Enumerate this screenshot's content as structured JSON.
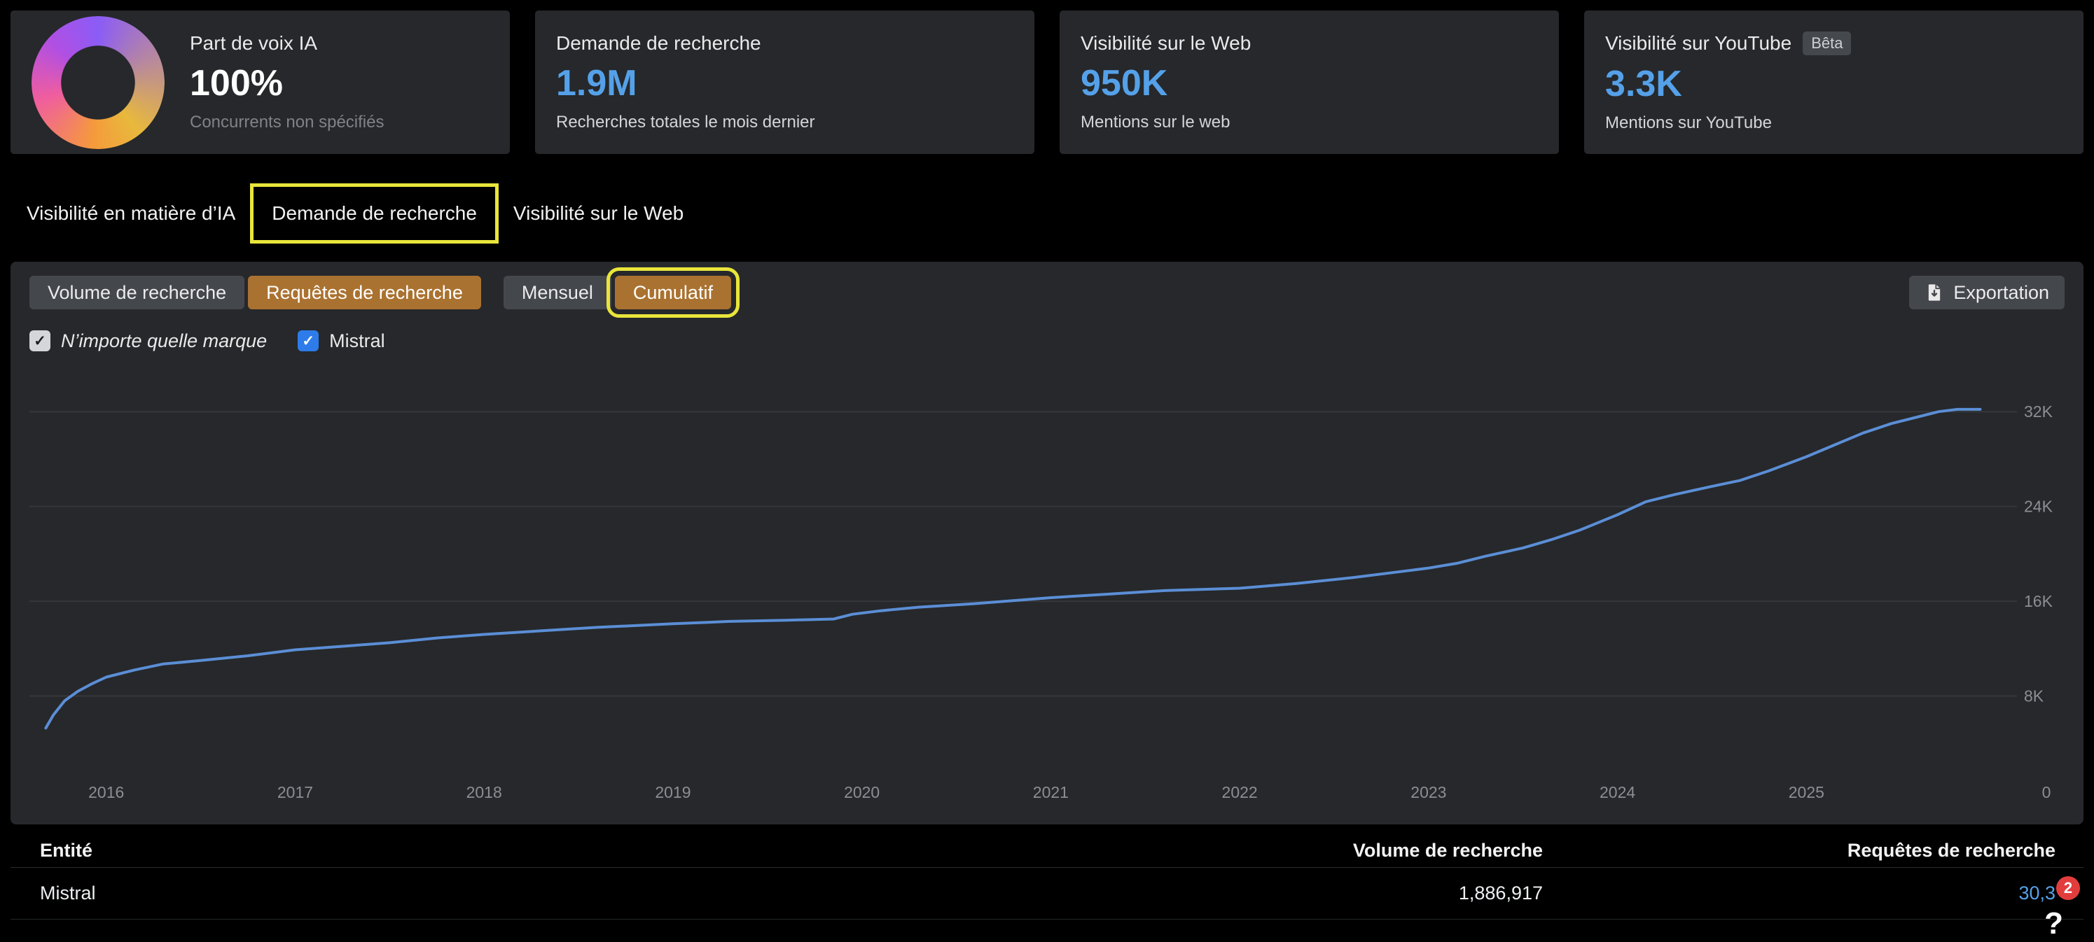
{
  "cards": [
    {
      "title": "Part de voix IA",
      "value": "100%",
      "subtitle": "Concurrents non spécifiés"
    },
    {
      "title": "Demande de recherche",
      "value": "1.9M",
      "subtitle": "Recherches totales le mois dernier"
    },
    {
      "title": "Visibilité sur le Web",
      "value": "950K",
      "subtitle": "Mentions sur le web"
    },
    {
      "title": "Visibilité sur YouTube",
      "badge": "Bêta",
      "value": "3.3K",
      "subtitle": "Mentions sur YouTube"
    }
  ],
  "tabs": [
    {
      "label": "Visibilité en matière d’IA",
      "active": false
    },
    {
      "label": "Demande de recherche",
      "active": true
    },
    {
      "label": "Visibilité sur le Web",
      "active": false
    }
  ],
  "toolbar": {
    "metric_toggle": [
      {
        "label": "Volume de recherche",
        "active": false
      },
      {
        "label": "Requêtes de recherche",
        "active": true
      }
    ],
    "period_toggle": [
      {
        "label": "Mensuel",
        "active": false
      },
      {
        "label": "Cumulatif",
        "active": true
      }
    ],
    "export_label": "Exportation"
  },
  "filters": [
    {
      "label": "N’importe quelle marque",
      "checked": true
    },
    {
      "label": "Mistral",
      "checked": true
    }
  ],
  "chart_data": {
    "type": "line",
    "title": "Requêtes de recherche cumulatives",
    "xlabel": "",
    "ylabel": "",
    "xlim": [
      2015.66,
      2026.3
    ],
    "ylim": [
      0,
      34900
    ],
    "grid": "horizontal",
    "legend": "none",
    "x_ticks": [
      "2016",
      "2017",
      "2018",
      "2019",
      "2020",
      "2021",
      "2022",
      "2023",
      "2024",
      "2025"
    ],
    "x_tick_values": [
      2016,
      2017,
      2018,
      2019,
      2020,
      2021,
      2022,
      2023,
      2024,
      2025
    ],
    "x_end_label": "0",
    "y_ticks": [
      8000,
      16000,
      24000,
      32000
    ],
    "y_tick_labels": [
      "8K",
      "16K",
      "24K",
      "32K"
    ],
    "series": [
      {
        "name": "Mistral",
        "color": "#5b8ed6",
        "points": [
          [
            2015.68,
            5300
          ],
          [
            2015.72,
            6400
          ],
          [
            2015.78,
            7600
          ],
          [
            2015.85,
            8400
          ],
          [
            2015.92,
            9000
          ],
          [
            2016.0,
            9600
          ],
          [
            2016.15,
            10200
          ],
          [
            2016.3,
            10700
          ],
          [
            2016.5,
            11000
          ],
          [
            2016.75,
            11400
          ],
          [
            2017.0,
            11900
          ],
          [
            2017.25,
            12200
          ],
          [
            2017.5,
            12500
          ],
          [
            2017.75,
            12900
          ],
          [
            2018.0,
            13200
          ],
          [
            2018.3,
            13500
          ],
          [
            2018.6,
            13800
          ],
          [
            2019.0,
            14100
          ],
          [
            2019.3,
            14300
          ],
          [
            2019.6,
            14400
          ],
          [
            2019.85,
            14500
          ],
          [
            2019.95,
            14900
          ],
          [
            2020.1,
            15200
          ],
          [
            2020.3,
            15500
          ],
          [
            2020.6,
            15800
          ],
          [
            2021.0,
            16300
          ],
          [
            2021.3,
            16600
          ],
          [
            2021.6,
            16900
          ],
          [
            2022.0,
            17100
          ],
          [
            2022.3,
            17500
          ],
          [
            2022.6,
            18000
          ],
          [
            2022.85,
            18500
          ],
          [
            2023.0,
            18800
          ],
          [
            2023.15,
            19200
          ],
          [
            2023.3,
            19800
          ],
          [
            2023.5,
            20500
          ],
          [
            2023.65,
            21200
          ],
          [
            2023.8,
            22000
          ],
          [
            2024.0,
            23300
          ],
          [
            2024.15,
            24400
          ],
          [
            2024.3,
            25000
          ],
          [
            2024.5,
            25700
          ],
          [
            2024.65,
            26200
          ],
          [
            2024.8,
            27000
          ],
          [
            2024.9,
            27600
          ],
          [
            2025.0,
            28200
          ],
          [
            2025.15,
            29200
          ],
          [
            2025.3,
            30200
          ],
          [
            2025.45,
            31000
          ],
          [
            2025.6,
            31600
          ],
          [
            2025.7,
            32000
          ],
          [
            2025.8,
            32200
          ],
          [
            2025.92,
            32200
          ]
        ]
      }
    ]
  },
  "table": {
    "headers": [
      "Entité",
      "Volume de recherche",
      "Requêtes de recherche"
    ],
    "rows": [
      {
        "entity": "Mistral",
        "volume": "1,886,917",
        "queries": "30,3"
      }
    ]
  },
  "overlay": {
    "notification_count": "2",
    "help_label": "?"
  },
  "icons": {
    "check": "✓"
  },
  "colors": {
    "accent_blue": "#55a1e9",
    "active_orange": "#aa7230",
    "highlight_yellow": "#e9e53b",
    "chart_line": "#5b8ed6",
    "badge_red": "#e23d3c",
    "card_bg": "#26282b",
    "page_bg": "#000000"
  }
}
